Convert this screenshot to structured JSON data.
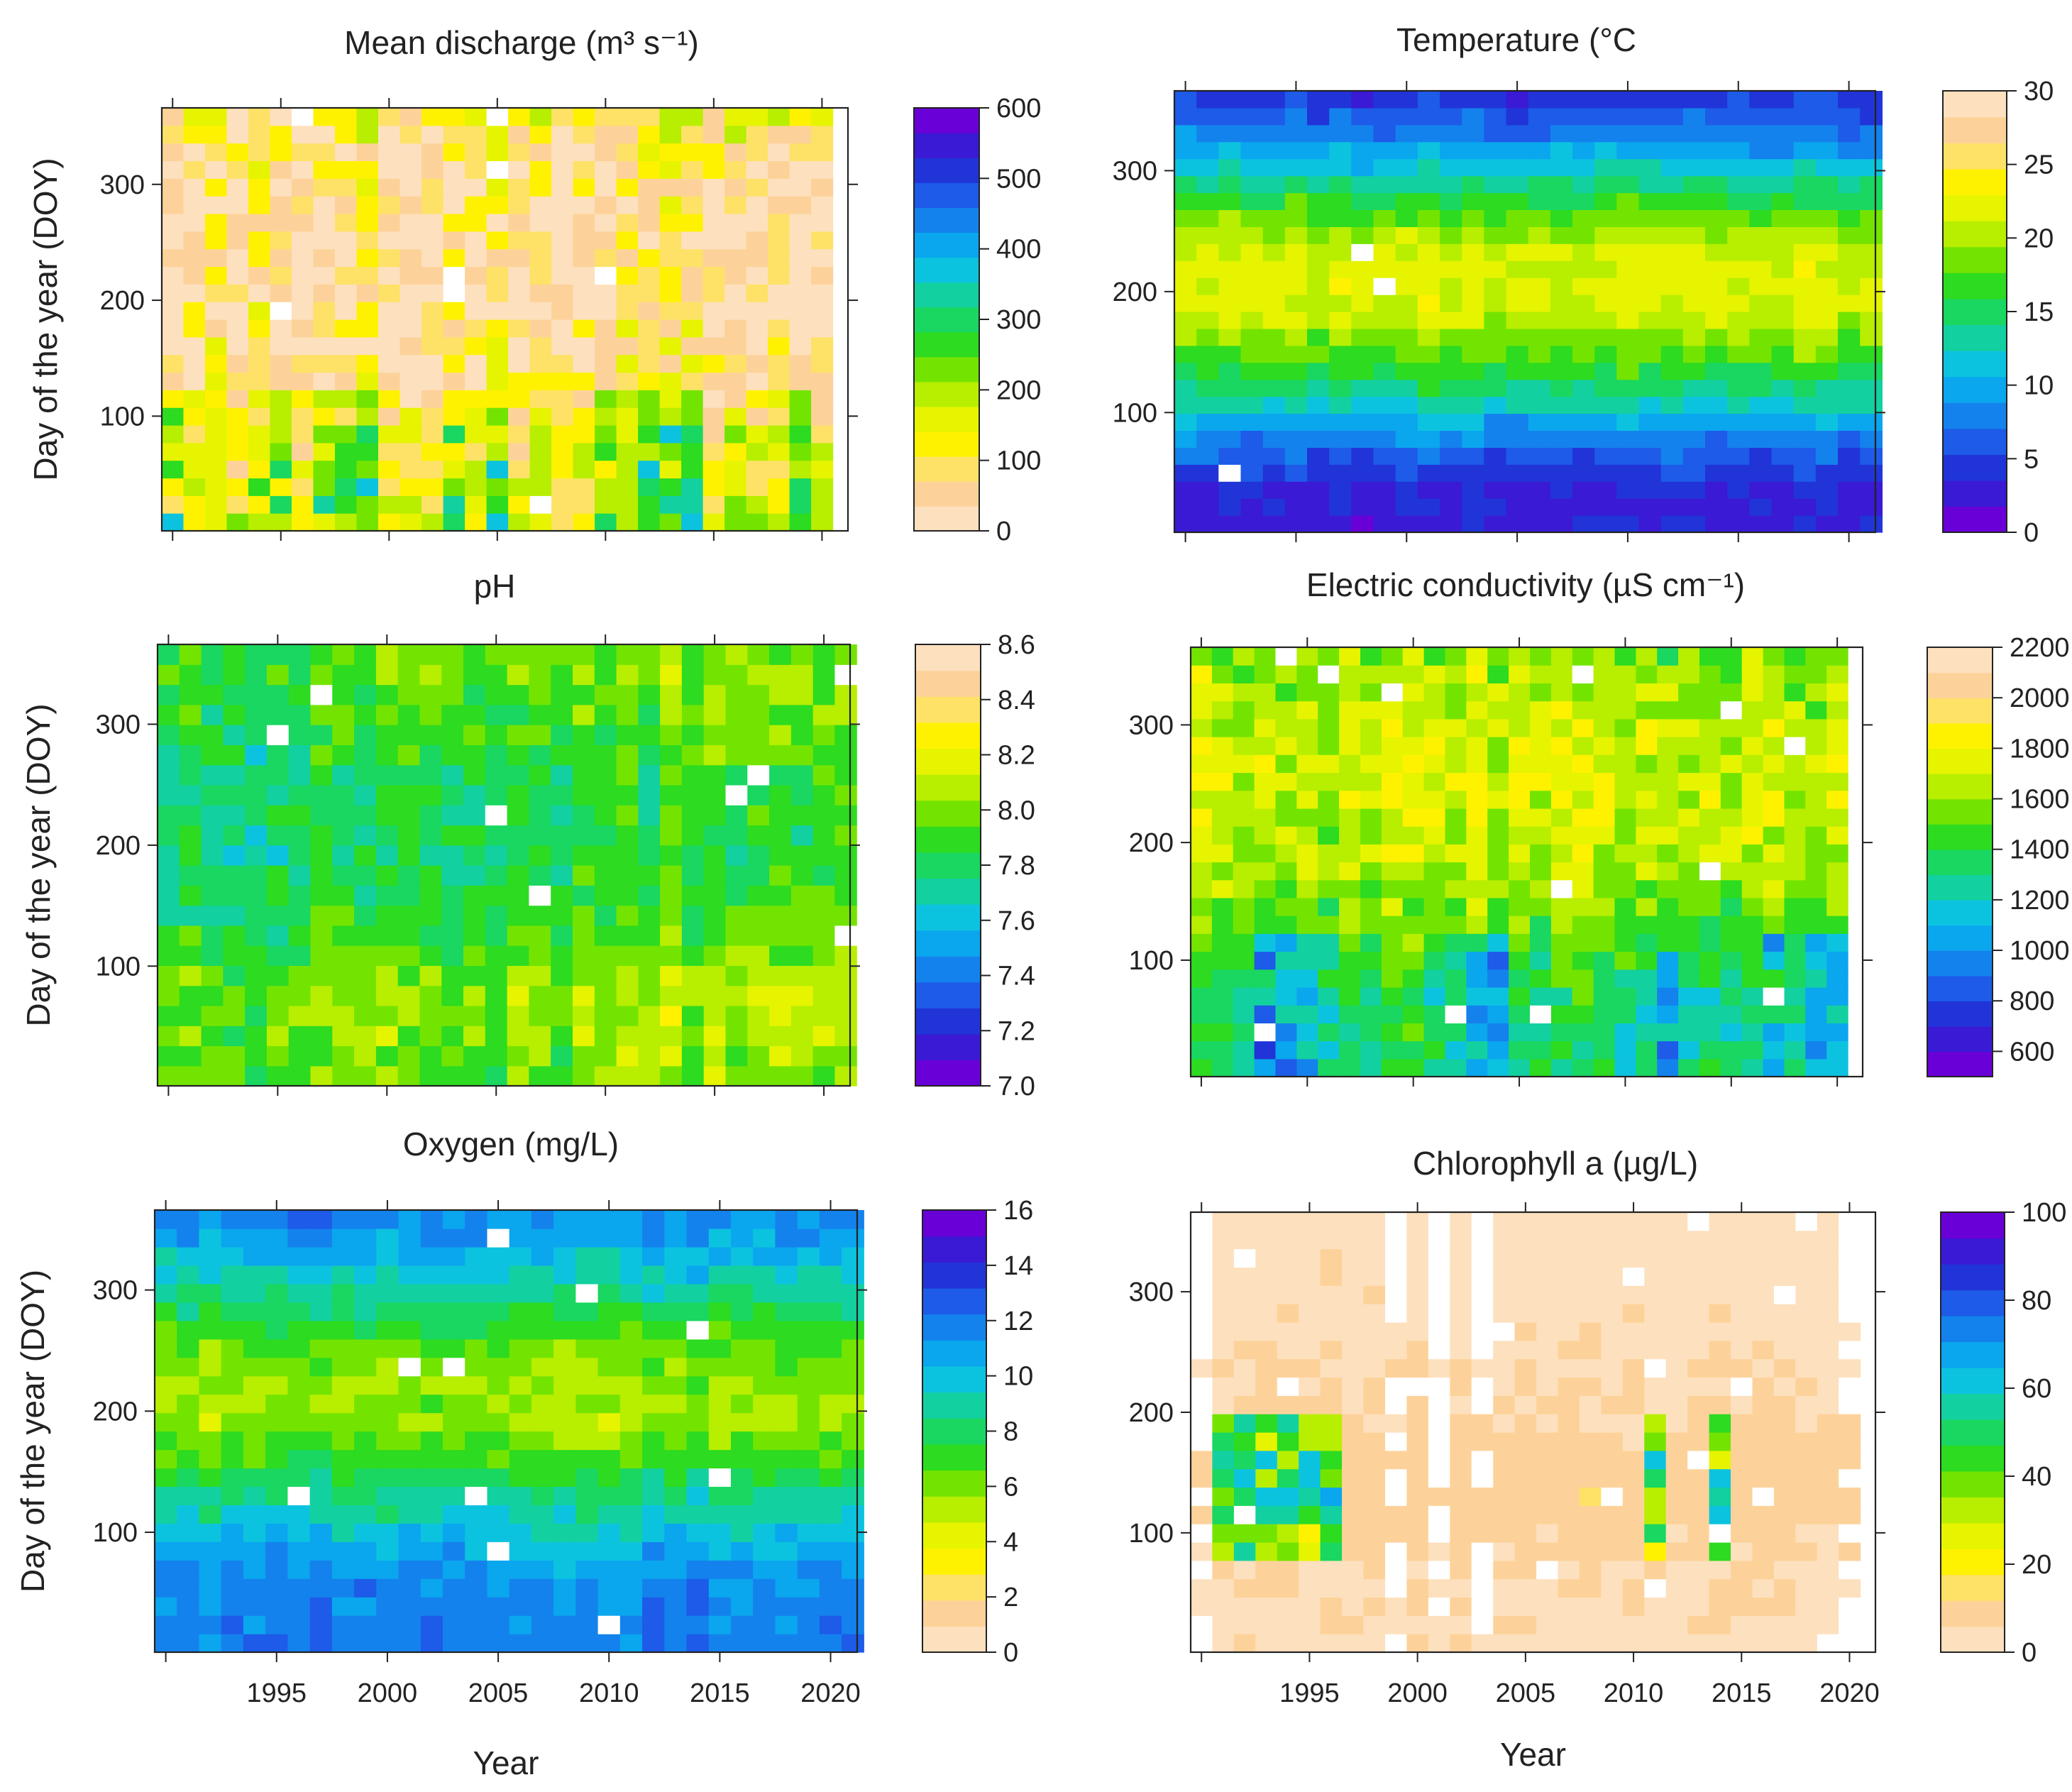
{
  "chart_data": [
    {
      "type": "heatmap",
      "id": "discharge",
      "title": "Mean discharge (m³ s⁻¹)",
      "xlabel": "",
      "ylabel": "Day of the year (DOY)",
      "xlim": [
        1989.5,
        2021.2
      ],
      "ylim": [
        1,
        366
      ],
      "x_ticks": [
        1990,
        1995,
        2000,
        2005,
        2010,
        2015,
        2020
      ],
      "x_tick_labels": [],
      "y_ticks": [
        100,
        200,
        300
      ],
      "y_tick_labels": [
        "100",
        "200",
        "300"
      ],
      "colorbar": {
        "min": 0,
        "max": 600,
        "ticks": [
          0,
          100,
          200,
          300,
          400,
          500,
          600
        ],
        "tick_labels": [
          "0",
          "100",
          "200",
          "300",
          "400",
          "500",
          "600"
        ]
      },
      "palette": [
        "#fde0bd",
        "#fdd29a",
        "#fde267",
        "#fff200",
        "#e6f400",
        "#b8ee00",
        "#73e400",
        "#2ddb20",
        "#19d760",
        "#13d0a0",
        "#0cc3df",
        "#0aa6ee",
        "#1482ed",
        "#1d5be8",
        "#2134d8",
        "#3a1ad4",
        "#6a00d8"
      ],
      "grid_years": [
        1990,
        2020
      ],
      "grid_rows": 24,
      "missing_fraction": 0.01,
      "value_pattern": "wet_spring",
      "seasonal_profile": [
        [
          1,
          170
        ],
        [
          60,
          150
        ],
        [
          100,
          110
        ],
        [
          140,
          75
        ],
        [
          190,
          45
        ],
        [
          230,
          35
        ],
        [
          270,
          40
        ],
        [
          310,
          60
        ],
        [
          340,
          85
        ],
        [
          366,
          120
        ]
      ],
      "variability": 140
    },
    {
      "type": "heatmap",
      "id": "temperature",
      "title": "Temperature (°C",
      "xlabel": "",
      "ylabel": "",
      "xlim": [
        1989.5,
        2021.2
      ],
      "ylim": [
        1,
        366
      ],
      "x_ticks": [
        1990,
        1995,
        2000,
        2005,
        2010,
        2015,
        2020
      ],
      "x_tick_labels": [],
      "y_ticks": [
        100,
        200,
        300
      ],
      "y_tick_labels": [
        "100",
        "200",
        "300"
      ],
      "colorbar": {
        "min": 0,
        "max": 30,
        "ticks": [
          0,
          5,
          10,
          15,
          20,
          25,
          30
        ],
        "tick_labels": [
          "0",
          "5",
          "10",
          "15",
          "20",
          "25",
          "30"
        ]
      },
      "palette": [
        "#6a00d8",
        "#3a1ad4",
        "#2134d8",
        "#1d5be8",
        "#1482ed",
        "#0aa6ee",
        "#0cc3df",
        "#13d0a0",
        "#19d760",
        "#2ddb20",
        "#73e400",
        "#b8ee00",
        "#e6f400",
        "#fff200",
        "#fde267",
        "#fdd29a",
        "#fde0bd"
      ],
      "grid_years": [
        1990,
        2021
      ],
      "grid_rows": 26,
      "missing_fraction": 0.005,
      "value_pattern": "seasonal",
      "seasonal_profile": [
        [
          1,
          3
        ],
        [
          40,
          3.5
        ],
        [
          80,
          8
        ],
        [
          110,
          13
        ],
        [
          140,
          17
        ],
        [
          180,
          21
        ],
        [
          210,
          22
        ],
        [
          240,
          21
        ],
        [
          270,
          17
        ],
        [
          300,
          12
        ],
        [
          330,
          8
        ],
        [
          366,
          4
        ]
      ],
      "variability": 2.2
    },
    {
      "type": "heatmap",
      "id": "ph",
      "title": "pH",
      "xlabel": "",
      "ylabel": "Day of the year (DOY)",
      "xlim": [
        1989.5,
        2021.2
      ],
      "ylim": [
        1,
        366
      ],
      "x_ticks": [
        1990,
        1995,
        2000,
        2005,
        2010,
        2015,
        2020
      ],
      "x_tick_labels": [],
      "y_ticks": [
        100,
        200,
        300
      ],
      "y_tick_labels": [
        "100",
        "200",
        "300"
      ],
      "colorbar": {
        "min": 7.0,
        "max": 8.6,
        "ticks": [
          7.0,
          7.2,
          7.4,
          7.6,
          7.8,
          8.0,
          8.2,
          8.4,
          8.6
        ],
        "tick_labels": [
          "7.0",
          "7.2",
          "7.4",
          "7.6",
          "7.8",
          "8.0",
          "8.2",
          "8.4",
          "8.6"
        ]
      },
      "palette": [
        "#6a00d8",
        "#3a1ad4",
        "#2134d8",
        "#1d5be8",
        "#1482ed",
        "#0aa6ee",
        "#0cc3df",
        "#13d0a0",
        "#19d760",
        "#2ddb20",
        "#73e400",
        "#b8ee00",
        "#e6f400",
        "#fff200",
        "#fde267",
        "#fdd29a",
        "#fde0bd"
      ],
      "grid_years": [
        1990,
        2021
      ],
      "grid_rows": 22,
      "missing_fraction": 0.01,
      "value_pattern": "trend",
      "seasonal_profile": [
        [
          1,
          7.85
        ],
        [
          80,
          7.95
        ],
        [
          130,
          7.8
        ],
        [
          200,
          7.7
        ],
        [
          260,
          7.75
        ],
        [
          320,
          7.85
        ],
        [
          366,
          7.85
        ]
      ],
      "trend_per_year": 0.006,
      "variability": 0.22
    },
    {
      "type": "heatmap",
      "id": "conductivity",
      "title": "Electric conductivity (µS cm⁻¹)",
      "xlabel": "",
      "ylabel": "",
      "xlim": [
        1989.5,
        2021.2
      ],
      "ylim": [
        1,
        366
      ],
      "x_ticks": [
        1990,
        1995,
        2000,
        2005,
        2010,
        2015,
        2020
      ],
      "x_tick_labels": [],
      "y_ticks": [
        100,
        200,
        300
      ],
      "y_tick_labels": [
        "100",
        "200",
        "300"
      ],
      "colorbar": {
        "min": 500,
        "max": 2200,
        "ticks": [
          600,
          800,
          1000,
          1200,
          1400,
          1600,
          1800,
          2000,
          2200
        ],
        "tick_labels": [
          "600",
          "800",
          "1000",
          "1200",
          "1400",
          "1600",
          "1800",
          "2000",
          "2200"
        ]
      },
      "palette": [
        "#6a00d8",
        "#3a1ad4",
        "#2134d8",
        "#1d5be8",
        "#1482ed",
        "#0aa6ee",
        "#0cc3df",
        "#13d0a0",
        "#19d760",
        "#2ddb20",
        "#73e400",
        "#b8ee00",
        "#e6f400",
        "#fff200",
        "#fde267",
        "#fdd29a",
        "#fde0bd"
      ],
      "grid_years": [
        1990,
        2020
      ],
      "grid_rows": 24,
      "missing_fraction": 0.01,
      "value_pattern": "wet_spring_inverse",
      "seasonal_profile": [
        [
          1,
          1350
        ],
        [
          60,
          1300
        ],
        [
          110,
          1450
        ],
        [
          160,
          1600
        ],
        [
          220,
          1700
        ],
        [
          280,
          1720
        ],
        [
          330,
          1650
        ],
        [
          366,
          1550
        ]
      ],
      "variability": 260
    },
    {
      "type": "heatmap",
      "id": "oxygen",
      "title": "Oxygen (mg/L)",
      "xlabel": "Year",
      "ylabel": "Day of the year (DOY)",
      "xlim": [
        1989.5,
        2021.2
      ],
      "ylim": [
        1,
        366
      ],
      "x_ticks": [
        1990,
        1995,
        2000,
        2005,
        2010,
        2015,
        2020
      ],
      "x_tick_labels": [
        "",
        "1995",
        "2000",
        "2005",
        "2010",
        "2015",
        "2020"
      ],
      "y_ticks": [
        100,
        200,
        300
      ],
      "y_tick_labels": [
        "100",
        "200",
        "300"
      ],
      "colorbar": {
        "min": 0,
        "max": 16,
        "ticks": [
          0,
          2,
          4,
          6,
          8,
          10,
          12,
          14,
          16
        ],
        "tick_labels": [
          "0",
          "2",
          "4",
          "6",
          "8",
          "10",
          "12",
          "14",
          "16"
        ]
      },
      "palette": [
        "#fde0bd",
        "#fdd29a",
        "#fde267",
        "#fff200",
        "#e6f400",
        "#b8ee00",
        "#73e400",
        "#2ddb20",
        "#19d760",
        "#13d0a0",
        "#0cc3df",
        "#0aa6ee",
        "#1482ed",
        "#1d5be8",
        "#2134d8",
        "#3a1ad4",
        "#6a00d8"
      ],
      "grid_years": [
        1990,
        2021
      ],
      "grid_rows": 24,
      "missing_fraction": 0.015,
      "value_pattern": "seasonal",
      "seasonal_profile": [
        [
          1,
          11.8
        ],
        [
          60,
          11.5
        ],
        [
          110,
          9.5
        ],
        [
          150,
          7.5
        ],
        [
          190,
          5.6
        ],
        [
          230,
          5.8
        ],
        [
          270,
          7.2
        ],
        [
          310,
          9.3
        ],
        [
          340,
          10.8
        ],
        [
          366,
          11.5
        ]
      ],
      "variability": 1.4
    },
    {
      "type": "heatmap",
      "id": "chlorophyll",
      "title": "Chlorophyll a (µg/L)",
      "xlabel": "Year",
      "ylabel": "",
      "xlim": [
        1989.5,
        2021.2
      ],
      "ylim": [
        1,
        366
      ],
      "x_ticks": [
        1990,
        1995,
        2000,
        2005,
        2010,
        2015,
        2020
      ],
      "x_tick_labels": [
        "",
        "1995",
        "2000",
        "2005",
        "2010",
        "2015",
        "2020"
      ],
      "y_ticks": [
        100,
        200,
        300
      ],
      "y_tick_labels": [
        "100",
        "200",
        "300"
      ],
      "colorbar": {
        "min": 0,
        "max": 100,
        "ticks": [
          0,
          20,
          40,
          60,
          80,
          100
        ],
        "tick_labels": [
          "0",
          "20",
          "40",
          "60",
          "80",
          "100"
        ]
      },
      "palette": [
        "#fde0bd",
        "#fdd29a",
        "#fde267",
        "#fff200",
        "#e6f400",
        "#b8ee00",
        "#73e400",
        "#2ddb20",
        "#19d760",
        "#13d0a0",
        "#0cc3df",
        "#0aa6ee",
        "#1482ed",
        "#1d5be8",
        "#2134d8",
        "#3a1ad4",
        "#6a00d8"
      ],
      "grid_years": [
        1990,
        2020
      ],
      "grid_rows": 24,
      "missing_fraction": 0.03,
      "value_pattern": "bloom",
      "seasonal_profile": [
        [
          1,
          4
        ],
        [
          80,
          6
        ],
        [
          130,
          10
        ],
        [
          200,
          6
        ],
        [
          280,
          4
        ],
        [
          366,
          3
        ]
      ],
      "bloom_years": [
        1991,
        1992,
        1993,
        1994,
        1995,
        1996,
        2011,
        2014
      ],
      "missing_columns": [
        1990,
        1999,
        2001,
        2003,
        2020
      ],
      "variability": 4
    }
  ]
}
